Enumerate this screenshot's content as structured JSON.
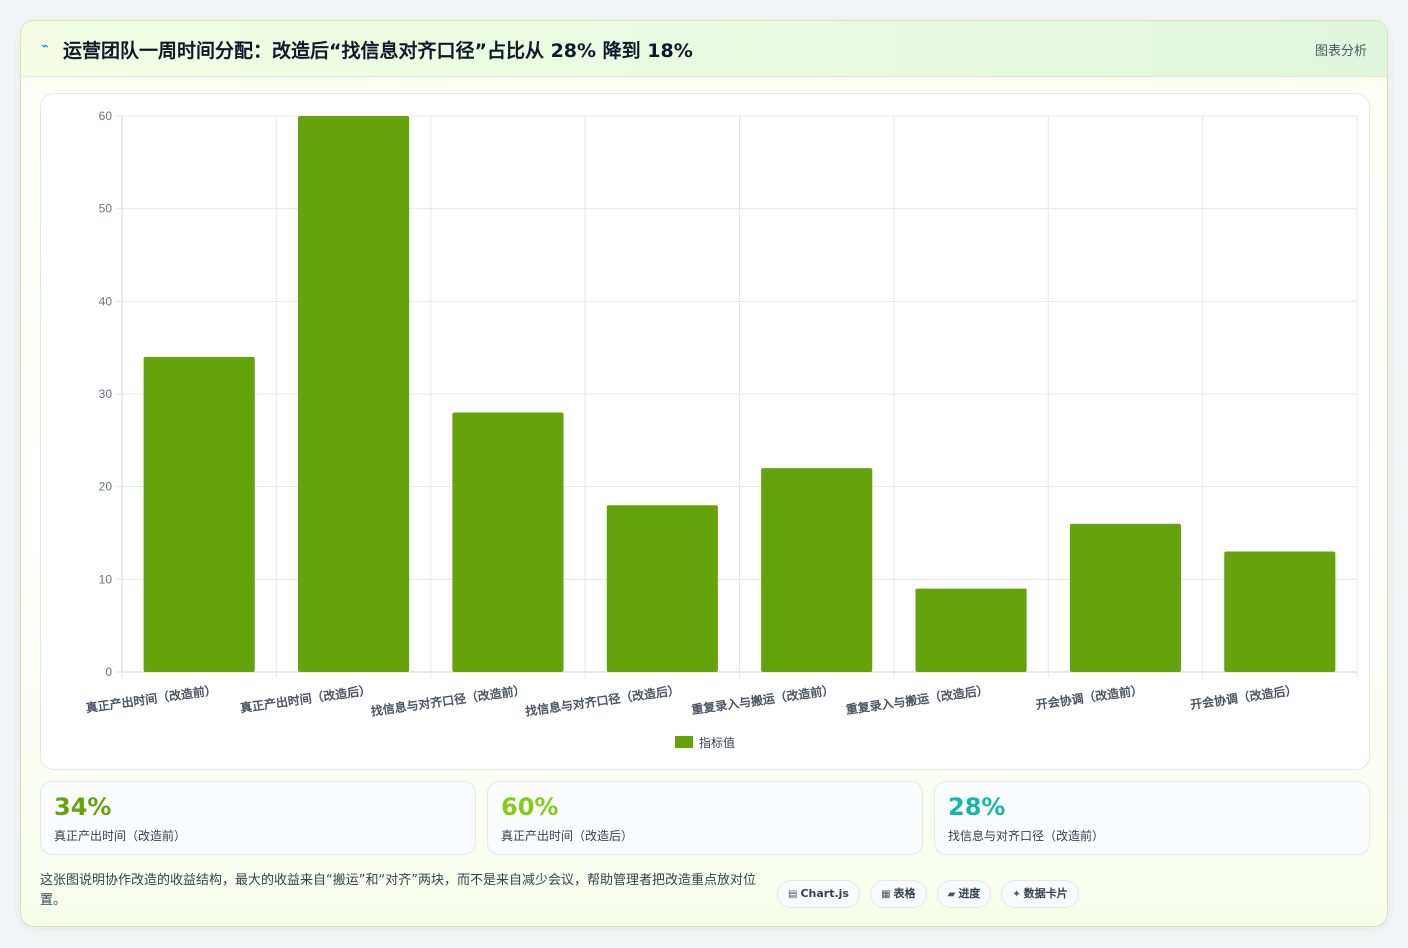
{
  "header": {
    "icon": "lightning-icon",
    "title": "运营团队一周时间分配：改造后“找信息对齐口径”占比从 28% 降到 18%",
    "tag": "图表分析"
  },
  "chart_data": {
    "type": "bar",
    "categories": [
      "真正产出时间（改造前）",
      "真正产出时间（改造后）",
      "找信息与对齐口径（改造前）",
      "找信息与对齐口径（改造后）",
      "重复录入与搬运（改造前）",
      "重复录入与搬运（改造后）",
      "开会协调（改造前）",
      "开会协调（改造后）"
    ],
    "series": [
      {
        "name": "指标值",
        "values": [
          34,
          60,
          28,
          18,
          22,
          9,
          16,
          13
        ],
        "color": "#65a30d"
      }
    ],
    "yticks": [
      0,
      10,
      20,
      30,
      40,
      50,
      60
    ],
    "ylim": [
      0,
      60
    ],
    "grid": true,
    "legend": "bottom"
  },
  "kpis": [
    {
      "value": "34%",
      "label": "真正产出时间（改造前）",
      "color": "#65a30d"
    },
    {
      "value": "60%",
      "label": "真正产出时间（改造后）",
      "color": "#84cc16"
    },
    {
      "value": "28%",
      "label": "找信息与对齐口径（改造前）",
      "color": "#14b8a6"
    }
  ],
  "footer": {
    "text": "这张图说明协作改造的收益结构，最大的收益来自“搬运”和“对齐”两块，而不是来自减少会议，帮助管理者把改造重点放对位置。",
    "chips": [
      {
        "icon": "chart-icon",
        "glyph": "▤",
        "label": "Chart.js"
      },
      {
        "icon": "table-icon",
        "glyph": "▦",
        "label": "表格"
      },
      {
        "icon": "progress-icon",
        "glyph": "▰",
        "label": "进度"
      },
      {
        "icon": "sparkle-icon",
        "glyph": "✦",
        "label": "数据卡片"
      }
    ]
  }
}
